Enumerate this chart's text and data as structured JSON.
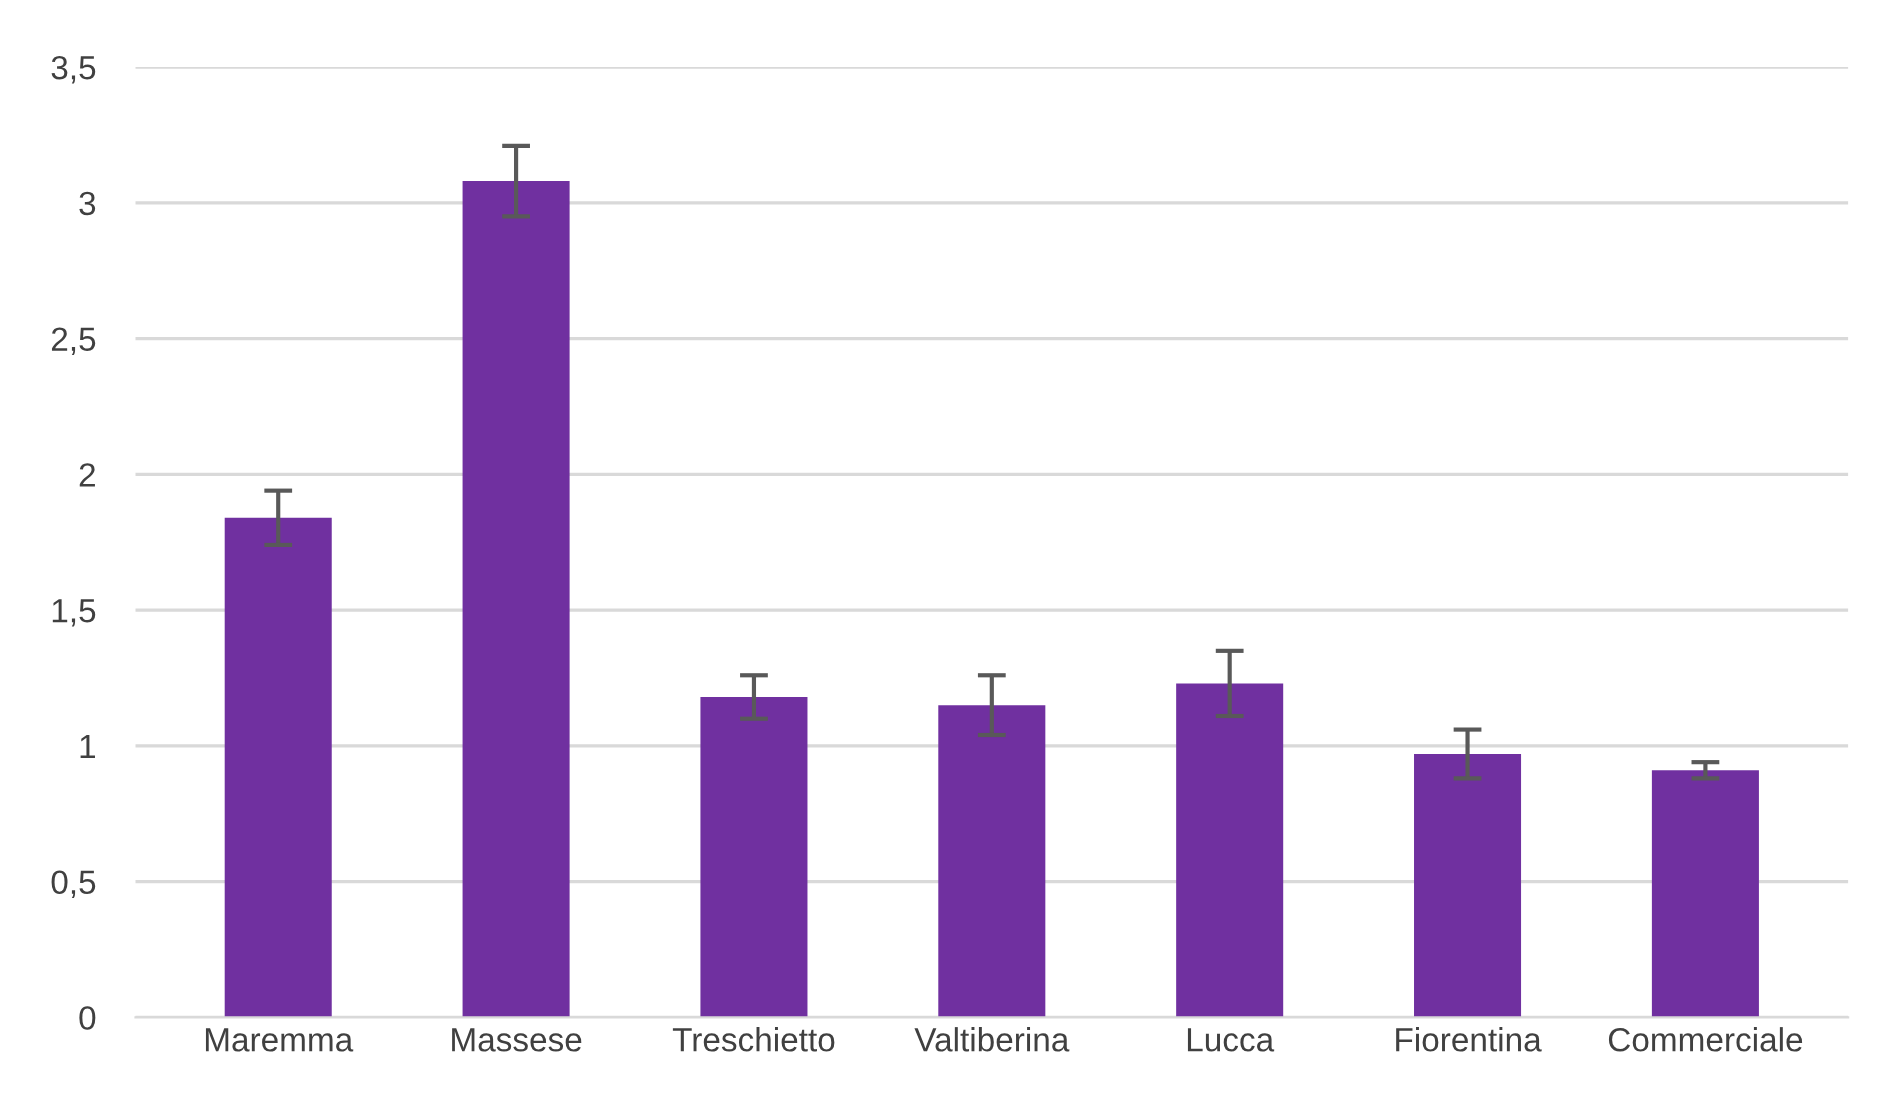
{
  "chart_data": {
    "type": "bar",
    "categories": [
      "Maremma",
      "Massese",
      "Treschietto",
      "Valtiberina",
      "Lucca",
      "Fiorentina",
      "Commerciale"
    ],
    "values": [
      1.84,
      3.08,
      1.18,
      1.15,
      1.23,
      0.97,
      0.91
    ],
    "errors": [
      0.1,
      0.13,
      0.08,
      0.11,
      0.12,
      0.09,
      0.03
    ],
    "color": "#7030a0",
    "ylim": [
      0,
      3.5
    ],
    "yticks": [
      {
        "value": 0,
        "label": "0"
      },
      {
        "value": 0.5,
        "label": "0,5"
      },
      {
        "value": 1,
        "label": "1"
      },
      {
        "value": 1.5,
        "label": "1,5"
      },
      {
        "value": 2,
        "label": "2"
      },
      {
        "value": 2.5,
        "label": "2,5"
      },
      {
        "value": 3,
        "label": "3"
      },
      {
        "value": 3.5,
        "label": "3,5"
      }
    ],
    "grid": "y"
  }
}
